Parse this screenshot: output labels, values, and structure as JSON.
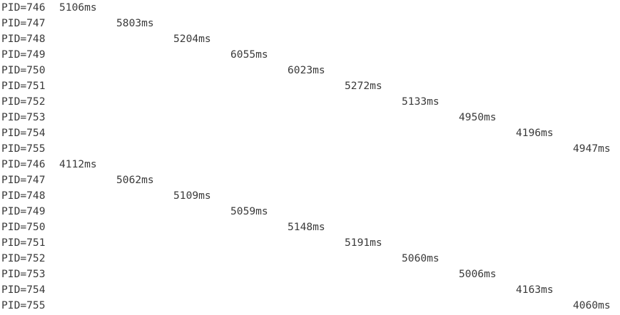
{
  "colors": {
    "background": "#ffffff",
    "text": "#3a3a3a"
  },
  "lines": [
    {
      "pid": "PID=746",
      "time": "5106ms",
      "column": 0
    },
    {
      "pid": "PID=747",
      "time": "5803ms",
      "column": 1
    },
    {
      "pid": "PID=748",
      "time": "5204ms",
      "column": 2
    },
    {
      "pid": "PID=749",
      "time": "6055ms",
      "column": 3
    },
    {
      "pid": "PID=750",
      "time": "6023ms",
      "column": 4
    },
    {
      "pid": "PID=751",
      "time": "5272ms",
      "column": 5
    },
    {
      "pid": "PID=752",
      "time": "5133ms",
      "column": 6
    },
    {
      "pid": "PID=753",
      "time": "4950ms",
      "column": 7
    },
    {
      "pid": "PID=754",
      "time": "4196ms",
      "column": 8
    },
    {
      "pid": "PID=755",
      "time": "4947ms",
      "column": 9
    },
    {
      "pid": "PID=746",
      "time": "4112ms",
      "column": 0
    },
    {
      "pid": "PID=747",
      "time": "5062ms",
      "column": 1
    },
    {
      "pid": "PID=748",
      "time": "5109ms",
      "column": 2
    },
    {
      "pid": "PID=749",
      "time": "5059ms",
      "column": 3
    },
    {
      "pid": "PID=750",
      "time": "5148ms",
      "column": 4
    },
    {
      "pid": "PID=751",
      "time": "5191ms",
      "column": 5
    },
    {
      "pid": "PID=752",
      "time": "5060ms",
      "column": 6
    },
    {
      "pid": "PID=753",
      "time": "5006ms",
      "column": 7
    },
    {
      "pid": "PID=754",
      "time": "4163ms",
      "column": 8
    },
    {
      "pid": "PID=755",
      "time": "4060ms",
      "column": 9
    }
  ]
}
